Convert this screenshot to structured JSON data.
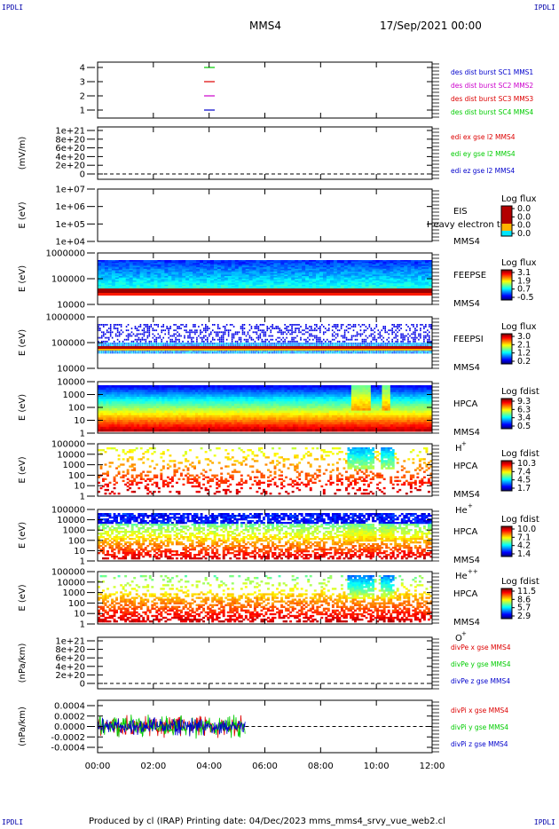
{
  "corner_label": "IPDLI",
  "header": {
    "spacecraft": "MMS4",
    "datetime": "17/Sep/2021 00:00"
  },
  "footer": {
    "text": "Produced by cl (IRAP)    Printing date: 04/Dec/2023    mms_mms4_srvy_vue_web2.cl"
  },
  "colors": {
    "red": "#dd0000",
    "green": "#00cc00",
    "blue": "#0000cc",
    "magenta": "#cc00cc"
  },
  "chart_data": {
    "type": "heatmap",
    "x_axis": {
      "ticks": [
        "00:00",
        "02:00",
        "04:00",
        "06:00",
        "08:00",
        "10:00",
        "12:00"
      ],
      "range_hours": [
        0,
        12
      ]
    },
    "panels": [
      {
        "id": "burst",
        "ylabel": "",
        "yticks": [
          "4",
          "3",
          "2",
          "1"
        ],
        "legend": [
          {
            "text": "des dist burst SC1 MMS1",
            "color": "#0000cc"
          },
          {
            "text": "des dist burst SC2 MMS2",
            "color": "#cc00cc"
          },
          {
            "text": "des dist burst SC3 MMS3",
            "color": "#dd0000"
          },
          {
            "text": "des dist burst SC4 MMS4",
            "color": "#00cc00"
          }
        ],
        "markers": [
          {
            "level": 4,
            "color": "#00cc00"
          },
          {
            "level": 3,
            "color": "#dd0000"
          },
          {
            "level": 2,
            "color": "#cc00cc"
          },
          {
            "level": 1,
            "color": "#0000cc"
          }
        ]
      },
      {
        "id": "edi",
        "ylabel": "(mV/m)",
        "yticks": [
          "1e+21",
          "8e+20",
          "6e+20",
          "4e+20",
          "2e+20",
          "0"
        ],
        "legend": [
          {
            "text": "edi ex gse l2 MMS4",
            "color": "#dd0000"
          },
          {
            "text": "edi ey gse l2 MMS4",
            "color": "#00cc00"
          },
          {
            "text": "edi ez gse l2 MMS4",
            "color": "#0000cc"
          }
        ]
      },
      {
        "id": "eis",
        "ylabel": "E (eV)",
        "yticks": [
          "1e+07",
          "1e+06",
          "1e+05",
          "1e+04"
        ],
        "instrument": [
          "EIS",
          "MMS4"
        ],
        "overlay_label": "Heavy electron to",
        "colorbar": {
          "title": "Log flux",
          "ticks": [
            "0.0",
            "0.0",
            "0.0",
            "0.0"
          ],
          "species": ""
        }
      },
      {
        "id": "feepse",
        "ylabel": "E (eV)",
        "yticks": [
          "1000000",
          "100000",
          "10000"
        ],
        "instrument": [
          "FEEPSE",
          "MMS4"
        ],
        "colorbar": {
          "title": "Log flux",
          "ticks": [
            "3.1",
            "1.9",
            "0.7",
            "-0.5"
          ],
          "species": ""
        }
      },
      {
        "id": "feepsi",
        "ylabel": "E (eV)",
        "yticks": [
          "1000000",
          "100000",
          "10000"
        ],
        "instrument": [
          "FEEPSI",
          "MMS4"
        ],
        "colorbar": {
          "title": "Log flux",
          "ticks": [
            "3.0",
            "2.1",
            "1.2",
            "0.2"
          ],
          "species": ""
        }
      },
      {
        "id": "hpca_h",
        "ylabel": "E (eV)",
        "yticks": [
          "10000",
          "1000",
          "100",
          "10",
          "1"
        ],
        "instrument": [
          "HPCA",
          "MMS4"
        ],
        "species": "H",
        "charge": "+",
        "colorbar": {
          "title": "Log fdist",
          "ticks": [
            "9.3",
            "6.3",
            "3.4",
            "0.5"
          ]
        }
      },
      {
        "id": "hpca_he",
        "ylabel": "E (eV)",
        "yticks": [
          "100000",
          "10000",
          "1000",
          "100",
          "10",
          "1"
        ],
        "instrument": [
          "HPCA",
          "MMS4"
        ],
        "species": "He",
        "charge": "+",
        "colorbar": {
          "title": "Log fdist",
          "ticks": [
            "10.3",
            "7.4",
            "4.5",
            "1.7"
          ]
        }
      },
      {
        "id": "hpca_hepp",
        "ylabel": "E (eV)",
        "yticks": [
          "100000",
          "10000",
          "1000",
          "100",
          "10",
          "1"
        ],
        "instrument": [
          "HPCA",
          "MMS4"
        ],
        "species": "He",
        "charge": "++",
        "colorbar": {
          "title": "Log fdist",
          "ticks": [
            "10.0",
            "7.1",
            "4.2",
            "1.4"
          ]
        }
      },
      {
        "id": "hpca_o",
        "ylabel": "E (eV)",
        "yticks": [
          "100000",
          "10000",
          "1000",
          "100",
          "10",
          "1"
        ],
        "instrument": [
          "HPCA",
          "MMS4"
        ],
        "species": "O",
        "charge": "+",
        "colorbar": {
          "title": "Log fdist",
          "ticks": [
            "11.5",
            "8.6",
            "5.7",
            "2.9"
          ]
        }
      },
      {
        "id": "divpe",
        "ylabel": "(nPa/km)",
        "yticks": [
          "1e+21",
          "8e+20",
          "6e+20",
          "4e+20",
          "2e+20",
          "0"
        ],
        "legend": [
          {
            "text": "divPe x gse MMS4",
            "color": "#dd0000"
          },
          {
            "text": "divPe y gse MMS4",
            "color": "#00cc00"
          },
          {
            "text": "divPe z gse MMS4",
            "color": "#0000cc"
          }
        ]
      },
      {
        "id": "divpi",
        "ylabel": "(nPa/km)",
        "yticks": [
          "0.0004",
          "0.0002",
          "0.0000",
          "-0.0002",
          "-0.0004"
        ],
        "yrange": [
          -0.0005,
          0.0005
        ],
        "data_end_hours": 5.3,
        "legend": [
          {
            "text": "divPi x gse MMS4",
            "color": "#dd0000"
          },
          {
            "text": "divPi y gse MMS4",
            "color": "#00cc00"
          },
          {
            "text": "divPi z gse MMS4",
            "color": "#0000cc"
          }
        ]
      }
    ]
  }
}
